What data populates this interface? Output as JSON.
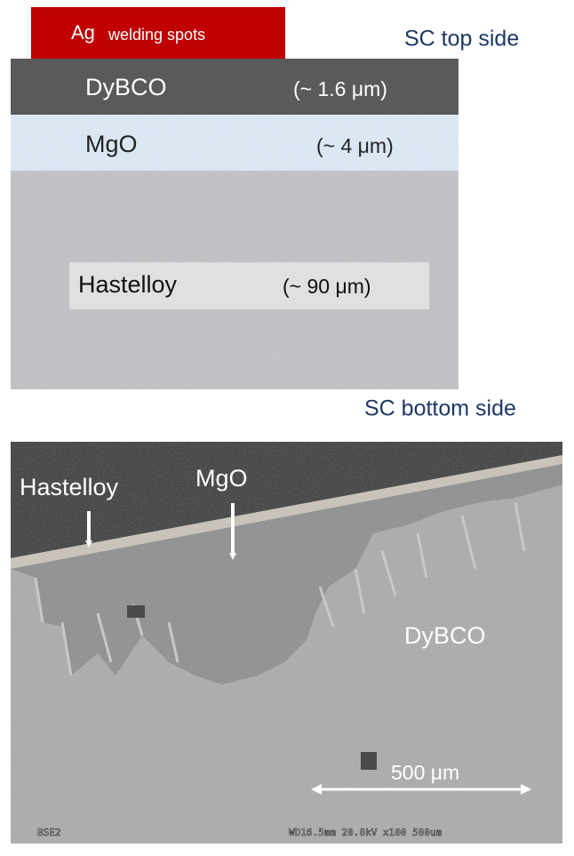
{
  "schematic": {
    "ag_label": {
      "element": "Ag",
      "text": "welding spots"
    },
    "top_label": "SC  top side",
    "layers": [
      {
        "name": "DyBCO",
        "thickness": "(~ 1.6 μm)"
      },
      {
        "name": "MgO",
        "thickness": "(~ 4 μm)"
      },
      {
        "name": "Hastelloy",
        "thickness": "(~ 90 μm)"
      }
    ],
    "bottom_label": "SC  bottom side"
  },
  "sem_image": {
    "labels": {
      "hastelloy": "Hastelloy",
      "mgo": "MgO",
      "dybco": "DyBCO"
    },
    "scale_bar": "500 μm",
    "footer_left": "BSE2",
    "footer_right": "WD16.5mm 20.0kV x100  500um"
  }
}
